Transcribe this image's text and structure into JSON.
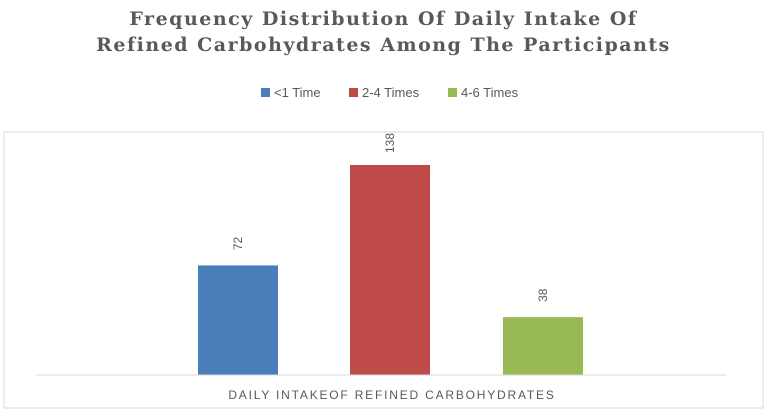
{
  "chart_data": {
    "type": "bar",
    "title_lines": [
      "Frequency Distribution Of Daily Intake Of",
      "Refined Carbohydrates Among The Participants"
    ],
    "xlabel": "DAILY INTAKEOF REFINED CARBOHYDRATES",
    "ylabel": "",
    "categories": [
      "DAILY INTAKEOF REFINED CARBOHYDRATES"
    ],
    "series": [
      {
        "name": "<1 Time",
        "values": [
          72
        ],
        "color": "#4a7ebb"
      },
      {
        "name": "2-4 Times",
        "values": [
          138
        ],
        "color": "#be4b48"
      },
      {
        "name": "4-6 Times",
        "values": [
          38
        ],
        "color": "#98b954"
      }
    ],
    "ylim": [
      0,
      150
    ],
    "grid": false,
    "legend_position": "top",
    "data_labels_rotated": true
  }
}
